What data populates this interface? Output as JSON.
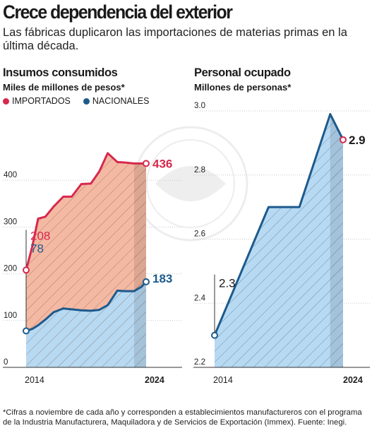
{
  "headline": "Crece dependencia del exterior",
  "subheadline": "Las fábricas duplicaron las importaciones de materias primas en la última década.",
  "colors": {
    "importados": "#d6294d",
    "importados_fill": "#f4b9a3",
    "nacionales": "#1d5a8c",
    "nacionales_fill": "#b7d9f2",
    "axis": "#333333"
  },
  "chart_data": [
    {
      "type": "area",
      "title": "Insumos consumidos",
      "ylabel": "Miles de millones de pesos*",
      "legend_position": "top-left",
      "ylim": [
        0,
        460
      ],
      "yticks": [
        "0",
        "100",
        "200",
        "300",
        "400"
      ],
      "xlim": [
        2014,
        2024
      ],
      "xticks": [
        "2014",
        "2024"
      ],
      "x": [
        2014,
        2014.5,
        2015,
        2015.6,
        2016.3,
        2017.1,
        2017.8,
        2018.6,
        2019.4,
        2020.1,
        2020.8,
        2021.6,
        2022.2,
        2023.0,
        2023.6,
        2024
      ],
      "series": [
        {
          "name": "IMPORTADOS",
          "values": [
            208,
            257,
            318,
            322,
            344,
            365,
            365,
            392,
            393,
            419,
            458,
            439,
            438,
            436,
            436,
            436
          ],
          "start_label": "208",
          "end_label": "436"
        },
        {
          "name": "NACIONALES",
          "values": [
            78,
            82,
            90,
            102,
            118,
            126,
            124,
            122,
            121,
            123,
            133,
            164,
            163,
            163,
            172,
            183
          ],
          "start_label": "78",
          "end_label": "183"
        }
      ]
    },
    {
      "type": "area",
      "title": "Personal ocupado",
      "ylabel": "Millones de personas*",
      "ylim": [
        2.2,
        3.0
      ],
      "yticks": [
        "2.2",
        "2.4",
        "2.6",
        "2.8",
        "3.0"
      ],
      "xlim": [
        2014,
        2024
      ],
      "xticks": [
        "2014",
        "2024"
      ],
      "x": [
        2014,
        2018.2,
        2020.6,
        2023,
        2024
      ],
      "series": [
        {
          "name": "Personal ocupado",
          "values": [
            2.3,
            2.7,
            2.7,
            2.99,
            2.91
          ],
          "start_label": "2.3",
          "end_label": "2.9"
        }
      ]
    }
  ],
  "footnote": "*Cifras a noviembre de cada año y corresponden a establecimientos manufactureros con el programa de la Industria Manufacturera, Maquiladora y de Servicios de Exportación (Immex). Fuente: Inegi."
}
